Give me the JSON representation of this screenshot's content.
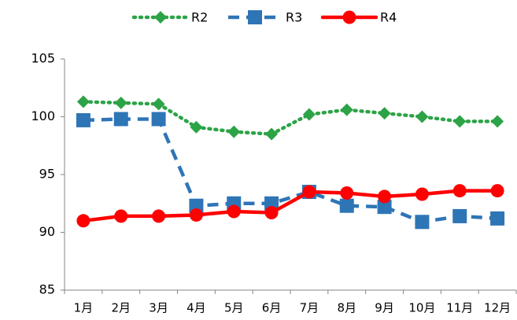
{
  "chart_data": {
    "type": "line",
    "categories": [
      "1月",
      "2月",
      "3月",
      "4月",
      "5月",
      "6月",
      "7月",
      "8月",
      "9月",
      "10月",
      "11月",
      "12月"
    ],
    "series": [
      {
        "name": "R2",
        "color": "#2ca346",
        "marker": "diamond",
        "line_style": "dotted",
        "values": [
          101.3,
          101.2,
          101.1,
          99.1,
          98.7,
          98.5,
          100.2,
          100.6,
          100.3,
          100.0,
          99.6,
          99.6
        ]
      },
      {
        "name": "R3",
        "color": "#2e75b6",
        "marker": "square",
        "line_style": "dashed",
        "values": [
          99.7,
          99.8,
          99.8,
          92.3,
          92.5,
          92.5,
          93.5,
          92.3,
          92.2,
          90.9,
          91.4,
          91.2
        ]
      },
      {
        "name": "R4",
        "color": "#ff0000",
        "marker": "circle",
        "line_style": "solid",
        "values": [
          91.0,
          91.4,
          91.4,
          91.5,
          91.8,
          91.7,
          93.5,
          93.4,
          93.1,
          93.3,
          93.6,
          93.6
        ]
      }
    ],
    "ylim": [
      85,
      105
    ],
    "yticks": [
      85,
      90,
      95,
      100,
      105
    ],
    "grid": false,
    "legend": "top"
  }
}
